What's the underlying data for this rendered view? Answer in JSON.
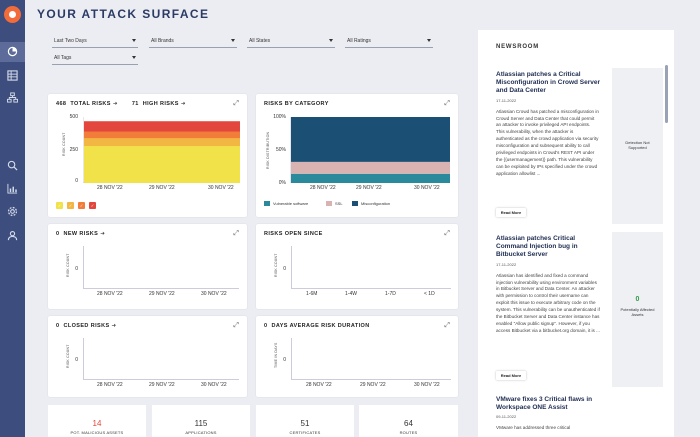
{
  "sidebar": {
    "icons": [
      "dashboard-icon",
      "grid-icon",
      "org-chart-icon",
      "search-icon",
      "bar-chart-icon",
      "settings-icon",
      "user-icon"
    ]
  },
  "header": {
    "title": "YOUR ATTACK SURFACE"
  },
  "filters": [
    "Last Two Days",
    "All Brands",
    "All States",
    "All Ratings",
    "All Tags"
  ],
  "total_risks": {
    "count": "468",
    "label": "TOTAL RISKS",
    "high_count": "71",
    "high_label": "HIGH RISKS",
    "ylabel": "RISK COUNT",
    "yticks": [
      "500",
      "250",
      "0"
    ],
    "xticks": [
      "28 NOV '22",
      "29 NOV '22",
      "30 NOV '22"
    ],
    "chart_data": {
      "type": "area",
      "x": [
        "28 NOV '22",
        "29 NOV '22",
        "30 NOV '22"
      ],
      "ylim": [
        0,
        500
      ],
      "series": [
        {
          "values": [
            280,
            280,
            280
          ]
        },
        {
          "values": [
            340,
            340,
            340
          ]
        },
        {
          "values": [
            390,
            390,
            390
          ]
        },
        {
          "values": [
            468,
            468,
            468
          ]
        }
      ],
      "colors": [
        "#f2e24a",
        "#f2b743",
        "#f27c3a",
        "#e3463c"
      ]
    },
    "severity": [
      {
        "label": "L",
        "color": "#f2e24a"
      },
      {
        "label": "M",
        "color": "#f2b743"
      },
      {
        "label": "H",
        "color": "#f27c3a"
      },
      {
        "label": "C",
        "color": "#e3463c"
      }
    ]
  },
  "risks_by_category": {
    "title": "RISKS BY CATEGORY",
    "ylabel": "RISK DISTRIBUTION",
    "yticks": [
      "100%",
      "50%",
      "0%"
    ],
    "xticks": [
      "28 NOV '22",
      "29 NOV '22",
      "30 NOV '22"
    ],
    "legend": [
      {
        "name": "Vulnerable software",
        "color": "#2a8a9c"
      },
      {
        "name": "SSL",
        "color": "#d9b3b1"
      },
      {
        "name": "Misconfiguration",
        "color": "#1b4f73"
      }
    ],
    "chart_data": {
      "type": "area",
      "stacked": true,
      "x": [
        "28 NOV '22",
        "29 NOV '22",
        "30 NOV '22"
      ],
      "ylim": [
        0,
        100
      ],
      "series": [
        {
          "name": "Vulnerable software",
          "values": [
            14,
            14,
            14
          ]
        },
        {
          "name": "SSL",
          "values": [
            18,
            18,
            18
          ]
        },
        {
          "name": "Misconfiguration",
          "values": [
            68,
            68,
            68
          ]
        }
      ]
    }
  },
  "new_risks": {
    "count": "0",
    "label": "NEW RISKS",
    "ylabel": "RISK COUNT",
    "xticks": [
      "28 NOV '22",
      "29 NOV '22",
      "30 NOV '22"
    ],
    "yticks": [
      "0"
    ]
  },
  "risks_open_since": {
    "title": "RISKS OPEN SINCE",
    "ylabel": "RISK COUNT",
    "xticks": [
      "1-6M",
      "1-4W",
      "1-7D",
      "< 1D"
    ],
    "yticks": [
      "0"
    ]
  },
  "closed_risks": {
    "count": "0",
    "label": "CLOSED RISKS",
    "ylabel": "RISK COUNT",
    "xticks": [
      "28 NOV '22",
      "29 NOV '22",
      "30 NOV '22"
    ],
    "yticks": [
      "0"
    ]
  },
  "avg_duration": {
    "count": "0",
    "label": "DAYS AVERAGE RISK DURATION",
    "ylabel": "TIME IN DAYS",
    "xticks": [
      "28 NOV '22",
      "29 NOV '22",
      "30 NOV '22"
    ],
    "yticks": [
      "0"
    ]
  },
  "stats": [
    {
      "value": "14",
      "label": "POT. MALICIOUS ASSETS",
      "color": "#e3463c"
    },
    {
      "value": "115",
      "label": "APPLICATIONS",
      "color": "#333"
    },
    {
      "value": "51",
      "label": "CERTIFICATES",
      "color": "#333"
    },
    {
      "value": "64",
      "label": "ROUTES",
      "color": "#333"
    }
  ],
  "newsroom": {
    "title": "NEWSROOM",
    "read_more": "Read More",
    "articles": [
      {
        "title": "Atlassian patches a Critical Misconfiguration in Crowd Server and Data Center",
        "date": "17-11-2022",
        "body": "Atlassian Crowd has patched a misconfiguration in Crowd Server and Data Center that could permit an attacker to invoke privileged API endpoints. This vulnerability, when the attacker is authenticated as the crowd application via security misconfiguration and subsequent ability to call privileged endpoints in Crowd's REST API under the {{usermanagement}} path. This vulnerability can be exploited by IPs specified under the crowd application allowlist ...",
        "side": "Detection Not Supported"
      },
      {
        "title": "Atlassian patches Critical Command Injection bug in Bitbucket Server",
        "date": "17-11-2022",
        "body": "Atlassian has identified and fixed a command injection vulnerability using environment variables in Bitbucket Server and Data Center. An attacker with permission to control their username can exploit this issue to execute arbitrary code on the system. This vulnerability can be unauthenticated if the Bitbucket Server and Data Center instance has enabled \"Allow public signup\". However, if you access Bitbucket via a bitbucket.org domain, it is ...",
        "side_num": "0",
        "side": "Potentially Affected Assets"
      },
      {
        "title": "VMware fixes 3 Critical flaws in Workspace ONE Assist",
        "date": "09-11-2022",
        "body": "VMware has addressed three critical"
      }
    ]
  }
}
